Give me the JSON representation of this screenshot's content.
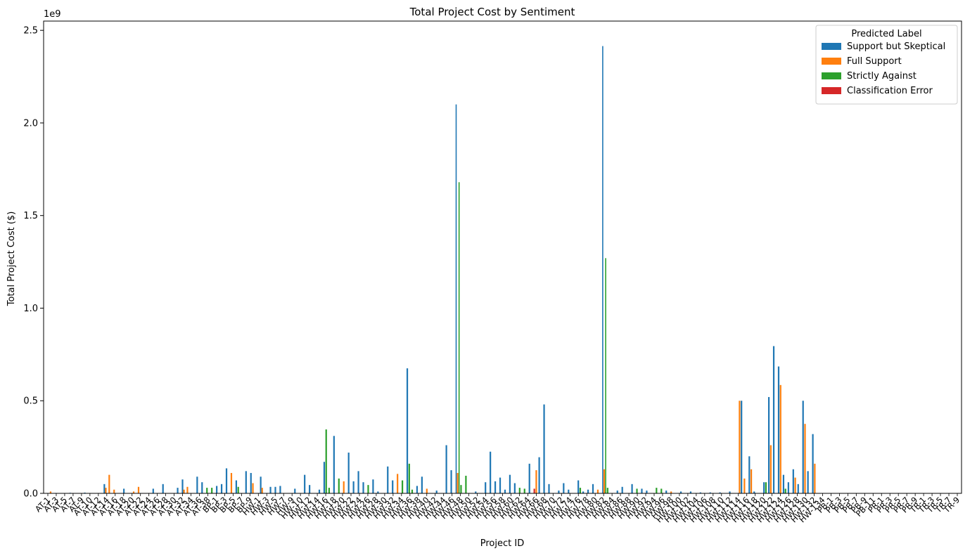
{
  "chart_data": {
    "type": "bar",
    "title": "Total Project Cost by Sentiment",
    "xlabel": "Project ID",
    "ylabel": "Total Project Cost ($)",
    "y_scale_label": "1e9",
    "ylim": [
      0,
      2550000000.0
    ],
    "yticks": [
      0,
      500000000.0,
      1000000000.0,
      1500000000.0,
      2000000000.0,
      2500000000.0
    ],
    "ytick_labels": [
      "0.0",
      "0.5",
      "1.0",
      "1.5",
      "2.0",
      "2.5"
    ],
    "legend": {
      "title": "Predicted Label",
      "placement": "top-right"
    },
    "series": [
      {
        "name": "Support but Skeptical",
        "color": "#1f77b4"
      },
      {
        "name": "Full Support",
        "color": "#ff7f0e"
      },
      {
        "name": "Strictly Against",
        "color": "#2ca02c"
      },
      {
        "name": "Classification Error",
        "color": "#d62728"
      }
    ],
    "category_count": 188,
    "x_tick_labels": [
      "AT-1",
      "AT-3",
      "AT-5",
      "AT-7",
      "AT-9",
      "AT-10",
      "AT-12",
      "AT-14",
      "AT-16",
      "AT-18",
      "AT-20",
      "AT-22",
      "AT-24",
      "AT-26",
      "AT-28",
      "AT-30",
      "AT-32",
      "AT-34",
      "AT-36",
      "AT-38",
      "BP-1",
      "BP-3",
      "BP-5",
      "BP-7",
      "BP-9",
      "HW-1",
      "HW-3",
      "HW-5",
      "HW-7",
      "HW-9",
      "HW-10",
      "HW-12",
      "HW-14",
      "HW-16",
      "HW-18",
      "HW-20",
      "HW-22",
      "HW-24",
      "HW-26",
      "HW-28",
      "HW-30",
      "HW-32",
      "HW-34",
      "HW-36",
      "HW-38",
      "HW-40",
      "HW-42",
      "HW-44",
      "HW-46",
      "HW-48",
      "HW-50",
      "HW-52",
      "HW-54",
      "HW-56",
      "HW-58",
      "HW-60",
      "HW-62",
      "HW-64",
      "HW-66",
      "HW-68",
      "HW-70",
      "HW-72",
      "HW-74",
      "HW-76",
      "HW-78",
      "HW-80",
      "HW-82",
      "HW-84",
      "HW-86",
      "HW-88",
      "HW-90",
      "HW-92",
      "HW-94",
      "HW-96",
      "HW-98",
      "HW-100",
      "HW-102",
      "HW-104",
      "HW-106",
      "HW-108",
      "HW-110",
      "HW-112",
      "HW-114",
      "HW-116",
      "HW-118",
      "HW-120",
      "HW-122",
      "HW-124",
      "HW-126",
      "HW-128",
      "HW-130",
      "HW-132",
      "HW-134",
      "PB-1",
      "PB-3",
      "PB-5",
      "PB-7",
      "PB-9",
      "PB-11",
      "PR-1",
      "PR-3",
      "PR-5",
      "PR-7",
      "PR-9",
      "TR-1",
      "TR-3",
      "TR-5",
      "TR-7",
      "TR-9"
    ],
    "bars": [
      {
        "x": 1,
        "series": 1,
        "value": 10000000.0
      },
      {
        "x": 2,
        "series": 0,
        "value": 2000000.0
      },
      {
        "x": 5,
        "series": 0,
        "value": 3000000.0
      },
      {
        "x": 8,
        "series": 0,
        "value": 4000000.0
      },
      {
        "x": 12,
        "series": 0,
        "value": 50000000.0
      },
      {
        "x": 12.3,
        "series": 1,
        "value": 30000000.0
      },
      {
        "x": 13,
        "series": 1,
        "value": 100000000.0
      },
      {
        "x": 14,
        "series": 1,
        "value": 20000000.0
      },
      {
        "x": 16,
        "series": 0,
        "value": 25000000.0
      },
      {
        "x": 18,
        "series": 1,
        "value": 10000000.0
      },
      {
        "x": 19,
        "series": 1,
        "value": 35000000.0
      },
      {
        "x": 22,
        "series": 0,
        "value": 25000000.0
      },
      {
        "x": 24,
        "series": 0,
        "value": 50000000.0
      },
      {
        "x": 27,
        "series": 0,
        "value": 30000000.0
      },
      {
        "x": 28,
        "series": 0,
        "value": 75000000.0
      },
      {
        "x": 28.3,
        "series": 1,
        "value": 20000000.0
      },
      {
        "x": 29,
        "series": 1,
        "value": 35000000.0
      },
      {
        "x": 31,
        "series": 0,
        "value": 90000000.0
      },
      {
        "x": 32,
        "series": 0,
        "value": 60000000.0
      },
      {
        "x": 33,
        "series": 2,
        "value": 30000000.0
      },
      {
        "x": 34,
        "series": 2,
        "value": 30000000.0
      },
      {
        "x": 35,
        "series": 0,
        "value": 40000000.0
      },
      {
        "x": 36,
        "series": 0,
        "value": 50000000.0
      },
      {
        "x": 37,
        "series": 0,
        "value": 135000000.0
      },
      {
        "x": 38,
        "series": 1,
        "value": 110000000.0
      },
      {
        "x": 39,
        "series": 0,
        "value": 70000000.0
      },
      {
        "x": 39.4,
        "series": 2,
        "value": 35000000.0
      },
      {
        "x": 41,
        "series": 0,
        "value": 120000000.0
      },
      {
        "x": 42,
        "series": 0,
        "value": 110000000.0
      },
      {
        "x": 42.4,
        "series": 1,
        "value": 55000000.0
      },
      {
        "x": 44,
        "series": 0,
        "value": 90000000.0
      },
      {
        "x": 44.3,
        "series": 1,
        "value": 30000000.0
      },
      {
        "x": 46,
        "series": 0,
        "value": 35000000.0
      },
      {
        "x": 47,
        "series": 0,
        "value": 35000000.0
      },
      {
        "x": 48,
        "series": 0,
        "value": 40000000.0
      },
      {
        "x": 51,
        "series": 0,
        "value": 25000000.0
      },
      {
        "x": 53,
        "series": 0,
        "value": 100000000.0
      },
      {
        "x": 54,
        "series": 0,
        "value": 45000000.0
      },
      {
        "x": 56,
        "series": 0,
        "value": 20000000.0
      },
      {
        "x": 57,
        "series": 0,
        "value": 170000000.0
      },
      {
        "x": 57.4,
        "series": 2,
        "value": 345000000.0
      },
      {
        "x": 58,
        "series": 2,
        "value": 30000000.0
      },
      {
        "x": 59,
        "series": 0,
        "value": 310000000.0
      },
      {
        "x": 60,
        "series": 2,
        "value": 80000000.0
      },
      {
        "x": 61,
        "series": 1,
        "value": 65000000.0
      },
      {
        "x": 62,
        "series": 0,
        "value": 220000000.0
      },
      {
        "x": 63,
        "series": 0,
        "value": 65000000.0
      },
      {
        "x": 64,
        "series": 0,
        "value": 120000000.0
      },
      {
        "x": 65,
        "series": 0,
        "value": 60000000.0
      },
      {
        "x": 66,
        "series": 2,
        "value": 45000000.0
      },
      {
        "x": 67,
        "series": 0,
        "value": 75000000.0
      },
      {
        "x": 68,
        "series": 0,
        "value": 10000000.0
      },
      {
        "x": 70,
        "series": 0,
        "value": 145000000.0
      },
      {
        "x": 71,
        "series": 0,
        "value": 70000000.0
      },
      {
        "x": 72,
        "series": 1,
        "value": 105000000.0
      },
      {
        "x": 73,
        "series": 2,
        "value": 70000000.0
      },
      {
        "x": 74,
        "series": 0,
        "value": 675000000.0
      },
      {
        "x": 74.4,
        "series": 2,
        "value": 160000000.0
      },
      {
        "x": 75,
        "series": 2,
        "value": 20000000.0
      },
      {
        "x": 76,
        "series": 0,
        "value": 40000000.0
      },
      {
        "x": 77,
        "series": 0,
        "value": 90000000.0
      },
      {
        "x": 78,
        "series": 1,
        "value": 25000000.0
      },
      {
        "x": 80,
        "series": 0,
        "value": 15000000.0
      },
      {
        "x": 82,
        "series": 0,
        "value": 260000000.0
      },
      {
        "x": 83,
        "series": 0,
        "value": 125000000.0
      },
      {
        "x": 84,
        "series": 0,
        "value": 2100000000.0
      },
      {
        "x": 84.3,
        "series": 1,
        "value": 110000000.0
      },
      {
        "x": 84.6,
        "series": 2,
        "value": 1680000000.0
      },
      {
        "x": 85,
        "series": 2,
        "value": 45000000.0
      },
      {
        "x": 86,
        "series": 2,
        "value": 95000000.0
      },
      {
        "x": 88,
        "series": 0,
        "value": 10000000.0
      },
      {
        "x": 90,
        "series": 0,
        "value": 60000000.0
      },
      {
        "x": 91,
        "series": 0,
        "value": 225000000.0
      },
      {
        "x": 92,
        "series": 0,
        "value": 65000000.0
      },
      {
        "x": 93,
        "series": 0,
        "value": 85000000.0
      },
      {
        "x": 94,
        "series": 0,
        "value": 20000000.0
      },
      {
        "x": 95,
        "series": 0,
        "value": 100000000.0
      },
      {
        "x": 96,
        "series": 0,
        "value": 55000000.0
      },
      {
        "x": 97,
        "series": 2,
        "value": 30000000.0
      },
      {
        "x": 98,
        "series": 2,
        "value": 25000000.0
      },
      {
        "x": 99,
        "series": 0,
        "value": 160000000.0
      },
      {
        "x": 100,
        "series": 3,
        "value": 25000000.0
      },
      {
        "x": 100.4,
        "series": 1,
        "value": 125000000.0
      },
      {
        "x": 101,
        "series": 0,
        "value": 195000000.0
      },
      {
        "x": 102,
        "series": 0,
        "value": 480000000.0
      },
      {
        "x": 103,
        "series": 0,
        "value": 50000000.0
      },
      {
        "x": 105,
        "series": 0,
        "value": 15000000.0
      },
      {
        "x": 106,
        "series": 0,
        "value": 55000000.0
      },
      {
        "x": 107,
        "series": 0,
        "value": 20000000.0
      },
      {
        "x": 109,
        "series": 0,
        "value": 70000000.0
      },
      {
        "x": 109.4,
        "series": 2,
        "value": 30000000.0
      },
      {
        "x": 110,
        "series": 0,
        "value": 10000000.0
      },
      {
        "x": 111,
        "series": 0,
        "value": 20000000.0
      },
      {
        "x": 112,
        "series": 0,
        "value": 50000000.0
      },
      {
        "x": 113,
        "series": 1,
        "value": 20000000.0
      },
      {
        "x": 114,
        "series": 0,
        "value": 2415000000.0
      },
      {
        "x": 114.3,
        "series": 1,
        "value": 130000000.0
      },
      {
        "x": 114.6,
        "series": 2,
        "value": 1270000000.0
      },
      {
        "x": 115,
        "series": 2,
        "value": 30000000.0
      },
      {
        "x": 117,
        "series": 0,
        "value": 15000000.0
      },
      {
        "x": 118,
        "series": 0,
        "value": 35000000.0
      },
      {
        "x": 120,
        "series": 0,
        "value": 50000000.0
      },
      {
        "x": 121,
        "series": 2,
        "value": 25000000.0
      },
      {
        "x": 122,
        "series": 0,
        "value": 25000000.0
      },
      {
        "x": 123,
        "series": 0,
        "value": 15000000.0
      },
      {
        "x": 125,
        "series": 2,
        "value": 30000000.0
      },
      {
        "x": 126,
        "series": 2,
        "value": 25000000.0
      },
      {
        "x": 127,
        "series": 0,
        "value": 15000000.0
      },
      {
        "x": 128,
        "series": 1,
        "value": 10000000.0
      },
      {
        "x": 130,
        "series": 0,
        "value": 10000000.0
      },
      {
        "x": 132,
        "series": 0,
        "value": 10000000.0
      },
      {
        "x": 134,
        "series": 0,
        "value": 5000000.0
      },
      {
        "x": 136,
        "series": 0,
        "value": 5000000.0
      },
      {
        "x": 138,
        "series": 0,
        "value": 5000000.0
      },
      {
        "x": 140,
        "series": 0,
        "value": 10000000.0
      },
      {
        "x": 142,
        "series": 1,
        "value": 500000000.0
      },
      {
        "x": 142.4,
        "series": 0,
        "value": 500000000.0
      },
      {
        "x": 143,
        "series": 1,
        "value": 80000000.0
      },
      {
        "x": 144,
        "series": 0,
        "value": 200000000.0
      },
      {
        "x": 144.4,
        "series": 1,
        "value": 130000000.0
      },
      {
        "x": 145,
        "series": 0,
        "value": 10000000.0
      },
      {
        "x": 147,
        "series": 0,
        "value": 60000000.0
      },
      {
        "x": 147.4,
        "series": 2,
        "value": 60000000.0
      },
      {
        "x": 148,
        "series": 0,
        "value": 520000000.0
      },
      {
        "x": 148.4,
        "series": 1,
        "value": 260000000.0
      },
      {
        "x": 149,
        "series": 0,
        "value": 795000000.0
      },
      {
        "x": 150,
        "series": 0,
        "value": 685000000.0
      },
      {
        "x": 150.4,
        "series": 1,
        "value": 585000000.0
      },
      {
        "x": 151,
        "series": 0,
        "value": 100000000.0
      },
      {
        "x": 151.4,
        "series": 2,
        "value": 25000000.0
      },
      {
        "x": 152,
        "series": 0,
        "value": 60000000.0
      },
      {
        "x": 153,
        "series": 0,
        "value": 130000000.0
      },
      {
        "x": 153.4,
        "series": 1,
        "value": 85000000.0
      },
      {
        "x": 154,
        "series": 0,
        "value": 50000000.0
      },
      {
        "x": 155,
        "series": 0,
        "value": 500000000.0
      },
      {
        "x": 155.4,
        "series": 1,
        "value": 375000000.0
      },
      {
        "x": 156,
        "series": 0,
        "value": 120000000.0
      },
      {
        "x": 157,
        "series": 0,
        "value": 320000000.0
      },
      {
        "x": 157.4,
        "series": 1,
        "value": 160000000.0
      }
    ]
  }
}
